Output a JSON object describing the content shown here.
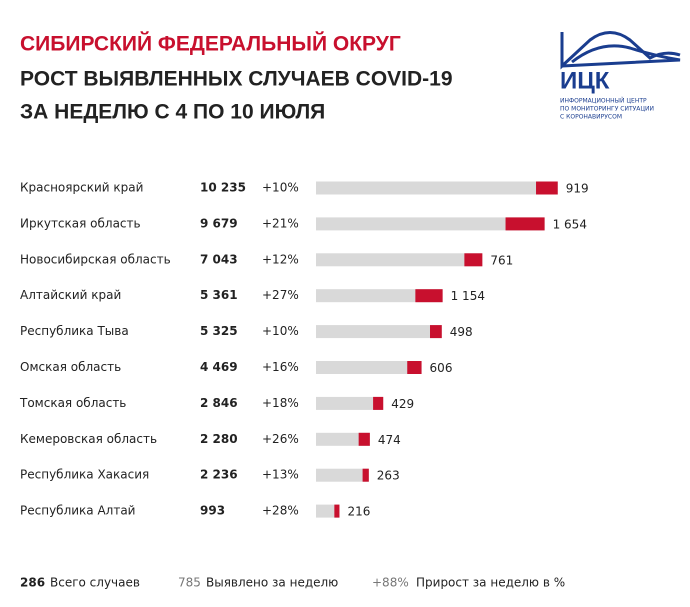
{
  "header": {
    "title_lines": [
      "СИБИРСКИЙ ФЕДЕРАЛЬНЫЙ ОКРУГ",
      "РОСТ ВЫЯВЛЕННЫХ СЛУЧАЕВ COVID-19",
      "ЗА НЕДЕЛЮ С 4 ПО 10 ИЮЛЯ"
    ]
  },
  "logo": {
    "name": "ИЦК",
    "lines": [
      "ИНФОРМАЦИОННЫЙ ЦЕНТР",
      "ПО МОНИТОРИНГУ СИТУАЦИИ",
      "С КОРОНАВИРУСОМ"
    ]
  },
  "chart_data": {
    "type": "bar",
    "categories": [
      "Красноярский край",
      "Иркутская область",
      "Новосибирская область",
      "Алтайский край",
      "Республика Тыва",
      "Омская область",
      "Томская область",
      "Кемеровская область",
      "Республика Хакасия",
      "Республика Алтай"
    ],
    "series": [
      {
        "name": "Всего случаев",
        "sample": "286",
        "color": "#d9d9d9",
        "values": [
          10235,
          9679,
          7043,
          5361,
          5325,
          4469,
          2846,
          2280,
          2236,
          993
        ],
        "value_labels": [
          "10 235",
          "9 679",
          "7 043",
          "5 361",
          "5 325",
          "4 469",
          "2 846",
          "2 280",
          "2 236",
          "993"
        ]
      },
      {
        "name": "Выявлено за неделю",
        "sample": "785",
        "color": "#c8102e",
        "values": [
          919,
          1654,
          761,
          1154,
          498,
          606,
          429,
          474,
          263,
          216
        ],
        "value_labels": [
          "919",
          "1 654",
          "761",
          "1 154",
          "498",
          "606",
          "429",
          "474",
          "263",
          "216"
        ]
      }
    ],
    "growth": {
      "name": "Прирост за неделю в %",
      "sample": "+88%",
      "values": [
        10,
        21,
        12,
        27,
        10,
        16,
        18,
        26,
        13,
        28
      ],
      "value_labels": [
        "+10%",
        "+21%",
        "+12%",
        "+27%",
        "+10%",
        "+16%",
        "+18%",
        "+26%",
        "+13%",
        "+28%"
      ]
    },
    "xlim": [
      0,
      10500
    ]
  }
}
